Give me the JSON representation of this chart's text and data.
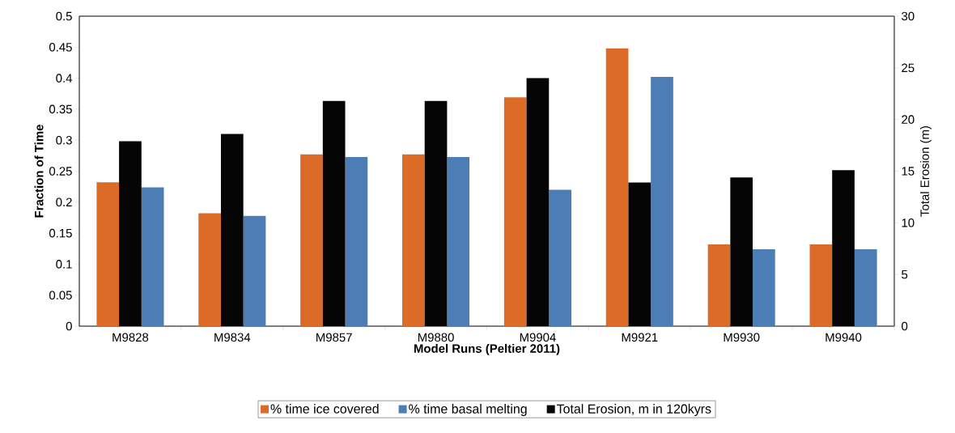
{
  "chart_data": {
    "type": "bar",
    "xlabel": "Model Runs (Peltier 2011)",
    "ylabel": "Fraction of Time",
    "y2label": "Total Erosion (m)",
    "categories": [
      "M9828",
      "M9834",
      "M9857",
      "M9880",
      "M9904",
      "M9921",
      "M9930",
      "M9940"
    ],
    "series": [
      {
        "name": "% time ice covered",
        "color": "#db6b27",
        "values": [
          0.232,
          0.182,
          0.277,
          0.277,
          0.369,
          0.448,
          0.132,
          0.132
        ]
      },
      {
        "name": "% time basal melting",
        "color": "#4c7db5",
        "values": [
          0.224,
          0.178,
          0.273,
          0.273,
          0.22,
          0.402,
          0.124,
          0.124
        ]
      },
      {
        "name": "Total Erosion, m in 120kyrs",
        "color": "#050505",
        "axis": "y2",
        "values": [
          17.9,
          18.6,
          21.8,
          21.8,
          24.0,
          13.9,
          14.4,
          15.1
        ]
      }
    ],
    "ylim": [
      0,
      0.5
    ],
    "yticks": [
      0,
      0.05,
      0.1,
      0.15,
      0.2,
      0.25,
      0.3,
      0.35,
      0.4,
      0.45,
      0.5
    ],
    "y2lim": [
      0,
      30
    ],
    "y2ticks": [
      0,
      5,
      10,
      15,
      20,
      25,
      30
    ],
    "grid": false,
    "legend": "bottom"
  }
}
